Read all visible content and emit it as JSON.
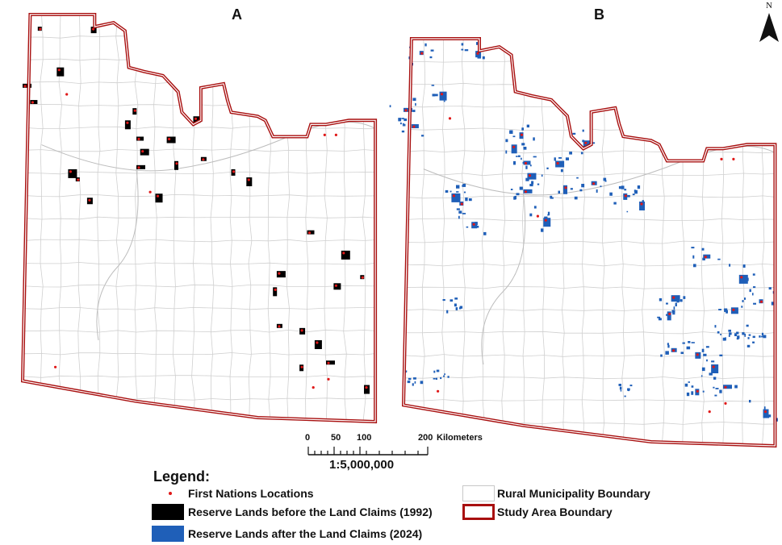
{
  "panels": [
    {
      "letter": "A"
    },
    {
      "letter": "B"
    }
  ],
  "north_arrow": {
    "label": "N"
  },
  "scale_bar": {
    "ticks": [
      "0",
      "50",
      "100",
      "200"
    ],
    "unit": "Kilometers",
    "ratio": "1:5,000,000"
  },
  "legend": {
    "title": "Legend:",
    "items": [
      {
        "label": "First Nations Locations",
        "color": "#e01818"
      },
      {
        "label": "Reserve Lands before the Land Claims (1992)",
        "color": "#000000"
      },
      {
        "label": "Reserve Lands after the Land Claims (2024)",
        "color": "#1f5fb8"
      },
      {
        "label": "Rural Municipality Boundary",
        "color": "#c8c8c8"
      },
      {
        "label": "Study Area Boundary",
        "color": "#a80f0f"
      }
    ]
  },
  "colors": {
    "boundary": "#a80f0f",
    "rm_lines": "#d0d0d0",
    "reserve_1992": "#000000",
    "reserve_2024": "#1f5fb8",
    "first_nations": "#e01818"
  }
}
